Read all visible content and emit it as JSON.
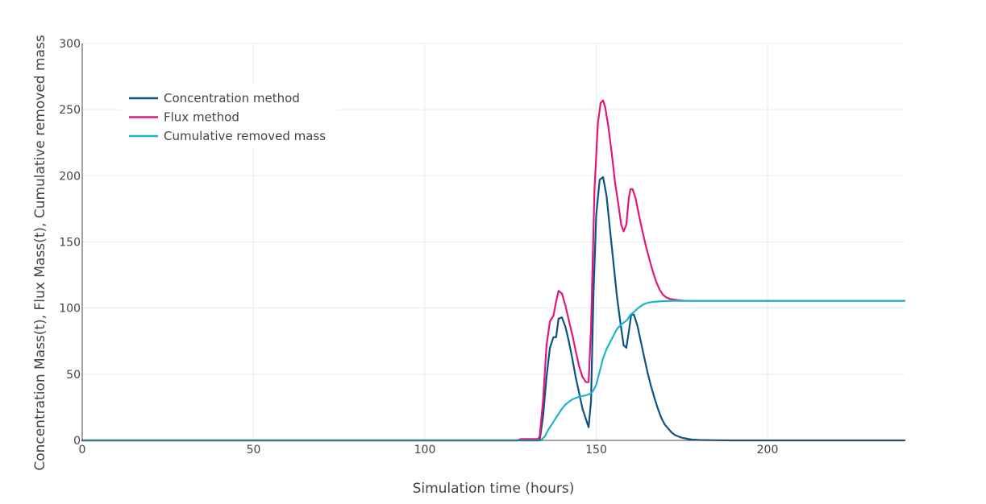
{
  "chart_data": {
    "type": "line",
    "title": "",
    "xlabel": "Simulation time (hours)",
    "ylabel": "Concentration Mass(t), Flux Mass(t), Cumulative removed mass",
    "xlim": [
      0,
      240
    ],
    "ylim": [
      0,
      300
    ],
    "xticks": [
      0,
      50,
      100,
      150,
      200
    ],
    "yticks": [
      0,
      50,
      100,
      150,
      200,
      250,
      300
    ],
    "grid": true,
    "legend_position": "top-left",
    "series": [
      {
        "name": "Concentration method",
        "color": "#0b5384",
        "x": [
          0,
          128,
          133.5,
          134.5,
          135.5,
          136.5,
          137.5,
          138.3,
          139,
          140,
          141,
          142,
          143,
          144,
          145,
          146,
          147,
          147.8,
          148.5,
          149.2,
          150,
          151,
          152,
          153,
          154,
          155,
          156,
          157,
          158,
          158.8,
          159.5,
          160.2,
          161,
          162,
          163,
          164,
          165,
          166,
          167,
          168,
          169,
          170,
          171,
          172,
          173,
          174,
          175,
          176,
          177,
          178,
          180,
          185,
          190,
          200,
          240
        ],
        "y": [
          0,
          0,
          0,
          18,
          48,
          70,
          78,
          78,
          92,
          93,
          86,
          75,
          62,
          48,
          36,
          24,
          16,
          10,
          30,
          110,
          170,
          197,
          199,
          185,
          160,
          135,
          110,
          90,
          72,
          70,
          82,
          95,
          95,
          87,
          75,
          63,
          51,
          41,
          32,
          24,
          17,
          12,
          9,
          6,
          4,
          3,
          2,
          1.5,
          1,
          0.6,
          0.3,
          0.1,
          0,
          0,
          0
        ]
      },
      {
        "name": "Flux method",
        "color": "#e0187a",
        "x": [
          0,
          127,
          128,
          133,
          133.5,
          134.5,
          135.5,
          136.5,
          137.5,
          138.3,
          139,
          140,
          141,
          142,
          143,
          144,
          145,
          146,
          147,
          147.8,
          148.5,
          149.5,
          150.5,
          151.3,
          152,
          152.6,
          153.5,
          154.5,
          155.5,
          156.5,
          157.3,
          158,
          158.8,
          159.5,
          160,
          160.6,
          161.5,
          162.5,
          163.5,
          164.5,
          165.5,
          166.5,
          167.5,
          168.5,
          169.5,
          170.5,
          171.5,
          172.5,
          174,
          176,
          178,
          180,
          185,
          190,
          200,
          240
        ],
        "y": [
          0,
          0,
          1,
          1,
          3,
          30,
          72,
          90,
          94,
          105,
          113,
          111,
          102,
          91,
          80,
          68,
          56,
          48,
          44,
          44,
          85,
          190,
          240,
          255,
          257,
          252,
          238,
          218,
          195,
          178,
          163,
          158,
          163,
          183,
          190,
          190,
          183,
          170,
          158,
          147,
          137,
          128,
          120,
          114,
          110,
          108,
          107,
          106.5,
          106,
          105.5,
          105.5,
          105.5,
          105.5,
          105.5,
          105.5,
          105.5
        ]
      },
      {
        "name": "Cumulative removed mass",
        "color": "#1fb5c9",
        "x": [
          0,
          133,
          134,
          135,
          136,
          137,
          138,
          139,
          140,
          141,
          142,
          143,
          144,
          145,
          146,
          147,
          148,
          149,
          150,
          151,
          152,
          153,
          154,
          155,
          156,
          157,
          158,
          159,
          160,
          161,
          162,
          163,
          164,
          165,
          166,
          167,
          168,
          169,
          170,
          171,
          172,
          174,
          176,
          180,
          190,
          200,
          240
        ],
        "y": [
          0,
          0,
          0.5,
          3,
          8,
          12,
          16,
          20,
          24,
          27,
          29,
          31,
          32,
          33,
          33.5,
          34,
          35,
          37,
          42,
          52,
          62,
          69,
          74,
          79,
          84,
          87,
          89,
          91,
          95,
          97,
          99.5,
          101.5,
          103,
          104,
          104.5,
          104.8,
          105,
          105.2,
          105.3,
          105.4,
          105.5,
          105.5,
          105.5,
          105.5,
          105.5,
          105.5,
          105.5
        ]
      }
    ]
  }
}
